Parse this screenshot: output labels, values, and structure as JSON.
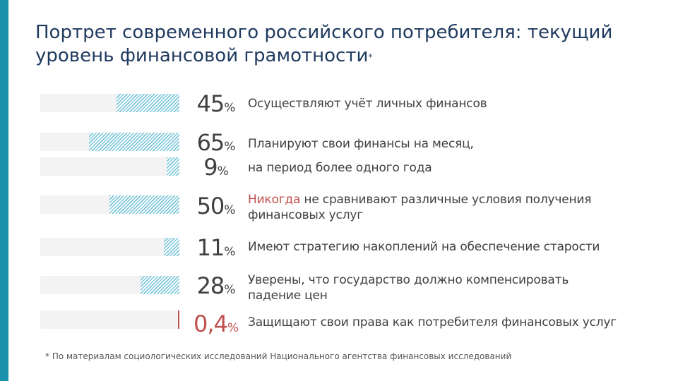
{
  "slide": {
    "title": "Портрет современного российского потребителя: текущий уровень финансовой грамотности",
    "title_mark": "*",
    "footnote": "* По материалам социологических исследований Национального агентства финансовых исследований",
    "colors": {
      "accent": "#1a91ad",
      "title": "#1f3a5f",
      "bar_hatch": "#7cc6d9",
      "highlight": "#c0504d",
      "track": "#f3f3f3"
    }
  },
  "chart_data": {
    "type": "bar",
    "orientation": "horizontal",
    "unit": "%",
    "xlim": [
      0,
      100
    ],
    "rows": [
      {
        "value": 45,
        "label": "45",
        "unit": "%",
        "text": "Осуществляют учёт личных финансов",
        "highlight_word": "",
        "text_rest": ""
      },
      {
        "value": 65,
        "label": "65",
        "unit": "%",
        "text": "Планируют свои финансы на месяц,",
        "highlight_word": "",
        "text_rest": ""
      },
      {
        "value": 9,
        "label": "9",
        "unit": "%",
        "text": "на период более одного года",
        "highlight_word": "",
        "text_rest": ""
      },
      {
        "value": 50,
        "label": "50",
        "unit": "%",
        "text": "",
        "highlight_word": "Никогда",
        "text_rest": " не сравнивают различные условия получения финансовых услуг"
      },
      {
        "value": 11,
        "label": "11",
        "unit": "%",
        "text": "Имеют стратегию накоплений на обеспечение старости",
        "highlight_word": "",
        "text_rest": ""
      },
      {
        "value": 28,
        "label": "28",
        "unit": "%",
        "text": "Уверены, что государство должно компенсировать падение цен",
        "highlight_word": "",
        "text_rest": ""
      },
      {
        "value": 0.4,
        "label": "0,4",
        "unit": "%",
        "text": "Защищают свои права как потребителя финансовых услуг",
        "highlight_word": "",
        "text_rest": "",
        "emphasis": true
      }
    ]
  }
}
